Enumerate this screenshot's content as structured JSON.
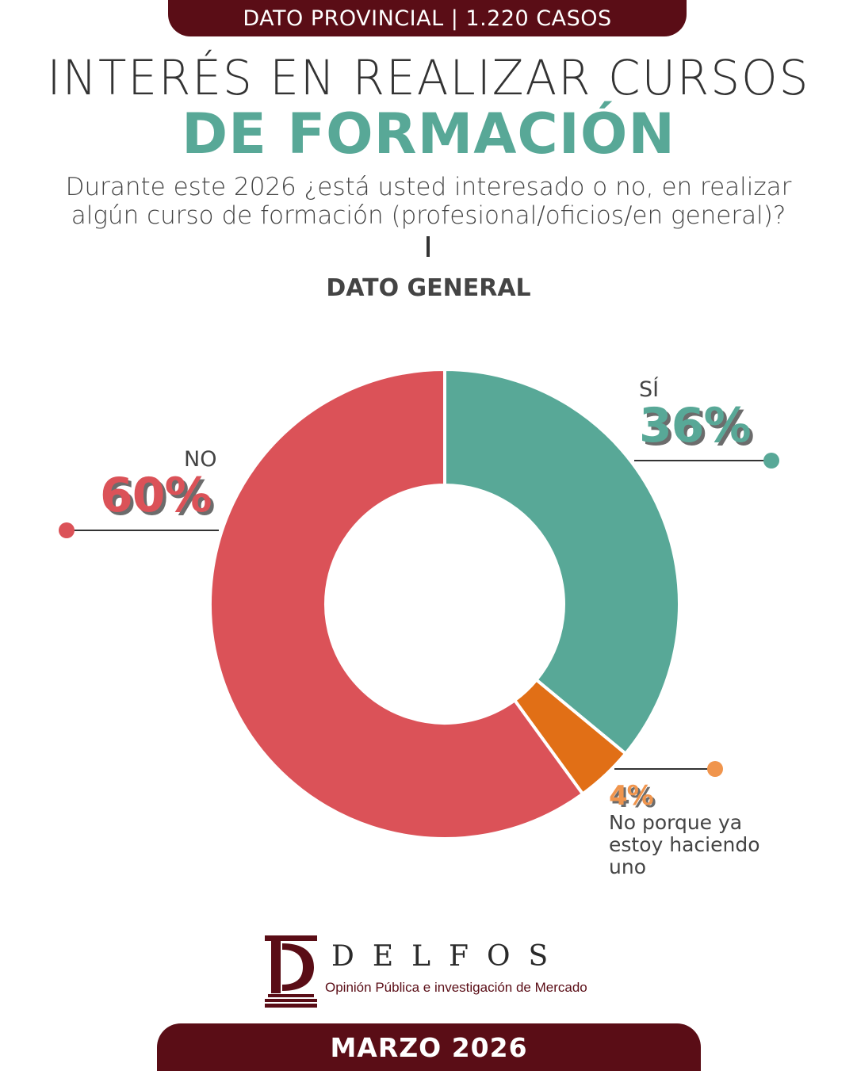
{
  "header": {
    "banner": "DATO PROVINCIAL | 1.220 CASOS",
    "title_line1": "INTERÉS EN REALIZAR CURSOS",
    "title_line2": "DE FORMACIÓN",
    "question": "Durante este 2026 ¿está usted interesado o no, en realizar algún curso de formación (profesional/oficios/en general)?",
    "section_label": "DATO GENERAL"
  },
  "chart_data": {
    "type": "pie",
    "variant": "donut",
    "slices": [
      {
        "label": "SÍ",
        "value": 36,
        "display": "36%",
        "color": "#58a897"
      },
      {
        "label": "No porque ya estoy haciendo uno",
        "value": 4,
        "display": "4%",
        "color": "#e16f16"
      },
      {
        "label": "NO",
        "value": 60,
        "display": "60%",
        "color": "#db5258"
      }
    ]
  },
  "footer": {
    "brand": "DELFOS",
    "tagline": "Opinión Pública e investigación de Mercado",
    "date": "MARZO 2026"
  }
}
